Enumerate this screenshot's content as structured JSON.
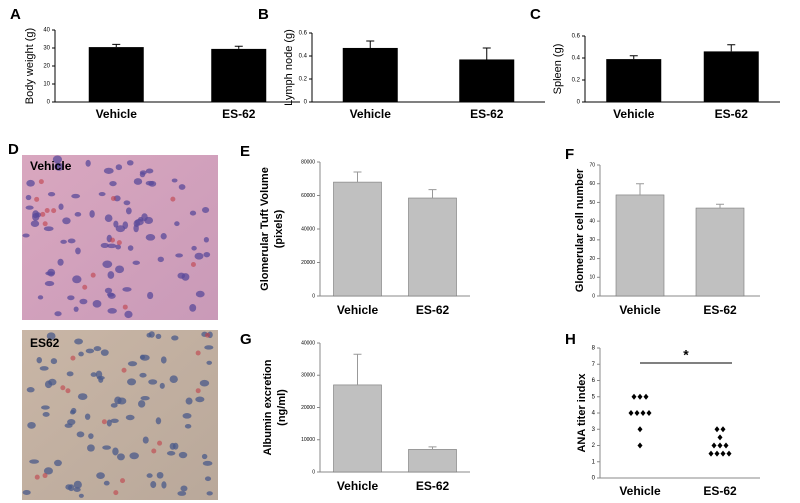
{
  "images": {
    "panel": "D",
    "labels": [
      "Vehicle",
      "ES62"
    ]
  },
  "chart_data": [
    {
      "type": "bar",
      "panel": "A",
      "ylabel": "Body weight (g)",
      "categories": [
        "Vehicle",
        "ES-62"
      ],
      "values": [
        30.5,
        29.5
      ],
      "errors": [
        1.5,
        1.5
      ],
      "color": "#000000",
      "ylim": [
        0,
        40
      ],
      "yticks": [
        0,
        10,
        20,
        30,
        40
      ]
    },
    {
      "type": "bar",
      "panel": "B",
      "ylabel": "Lymph node (g)",
      "categories": [
        "Vehicle",
        "ES-62"
      ],
      "values": [
        0.47,
        0.37
      ],
      "errors": [
        0.06,
        0.1
      ],
      "color": "#000000",
      "ylim": [
        0,
        0.6
      ],
      "yticks": [
        0,
        0.2,
        0.4,
        0.6
      ]
    },
    {
      "type": "bar",
      "panel": "C",
      "ylabel": "Spleen (g)",
      "categories": [
        "Vehicle",
        "ES-62"
      ],
      "values": [
        0.39,
        0.46
      ],
      "errors": [
        0.03,
        0.06
      ],
      "color": "#000000",
      "ylim": [
        0,
        0.6
      ],
      "yticks": [
        0,
        0.2,
        0.4,
        0.6
      ]
    },
    {
      "type": "bar",
      "panel": "E",
      "ylabel": [
        "Glomerular Tuft Volume",
        "(pixels)"
      ],
      "categories": [
        "Vehicle",
        "ES-62"
      ],
      "values": [
        68000,
        58500
      ],
      "errors": [
        6000,
        5000
      ],
      "color": "#c0c0c0",
      "ylim": [
        0,
        80000
      ],
      "yticks": [
        0,
        20000,
        40000,
        60000,
        80000
      ]
    },
    {
      "type": "bar",
      "panel": "F",
      "ylabel": "Glomerular cell number",
      "categories": [
        "Vehicle",
        "ES-62"
      ],
      "values": [
        54,
        47
      ],
      "errors": [
        6,
        2
      ],
      "color": "#c0c0c0",
      "ylim": [
        0,
        70
      ],
      "yticks": [
        0,
        10,
        20,
        30,
        40,
        50,
        60,
        70
      ]
    },
    {
      "type": "bar",
      "panel": "G",
      "ylabel": [
        "Albumin excretion",
        "(ng/ml)"
      ],
      "categories": [
        "Vehicle",
        "ES-62"
      ],
      "values": [
        27000,
        7000
      ],
      "errors": [
        9500,
        800
      ],
      "color": "#c0c0c0",
      "ylim": [
        0,
        40000
      ],
      "yticks": [
        0,
        10000,
        20000,
        30000,
        40000
      ]
    },
    {
      "type": "strip",
      "panel": "H",
      "ylabel": "ANA titer index",
      "categories": [
        "Vehicle",
        "ES-62"
      ],
      "values": [
        [
          5,
          5,
          5,
          4,
          4,
          4,
          4,
          3,
          2
        ],
        [
          3,
          3,
          2.5,
          2,
          2,
          2,
          1.5,
          1.5,
          1.5,
          1.5
        ]
      ],
      "color": "#000000",
      "annotation": "*",
      "ylim": [
        0,
        8
      ],
      "yticks": [
        0,
        1,
        2,
        3,
        4,
        5,
        6,
        7,
        8
      ]
    }
  ]
}
